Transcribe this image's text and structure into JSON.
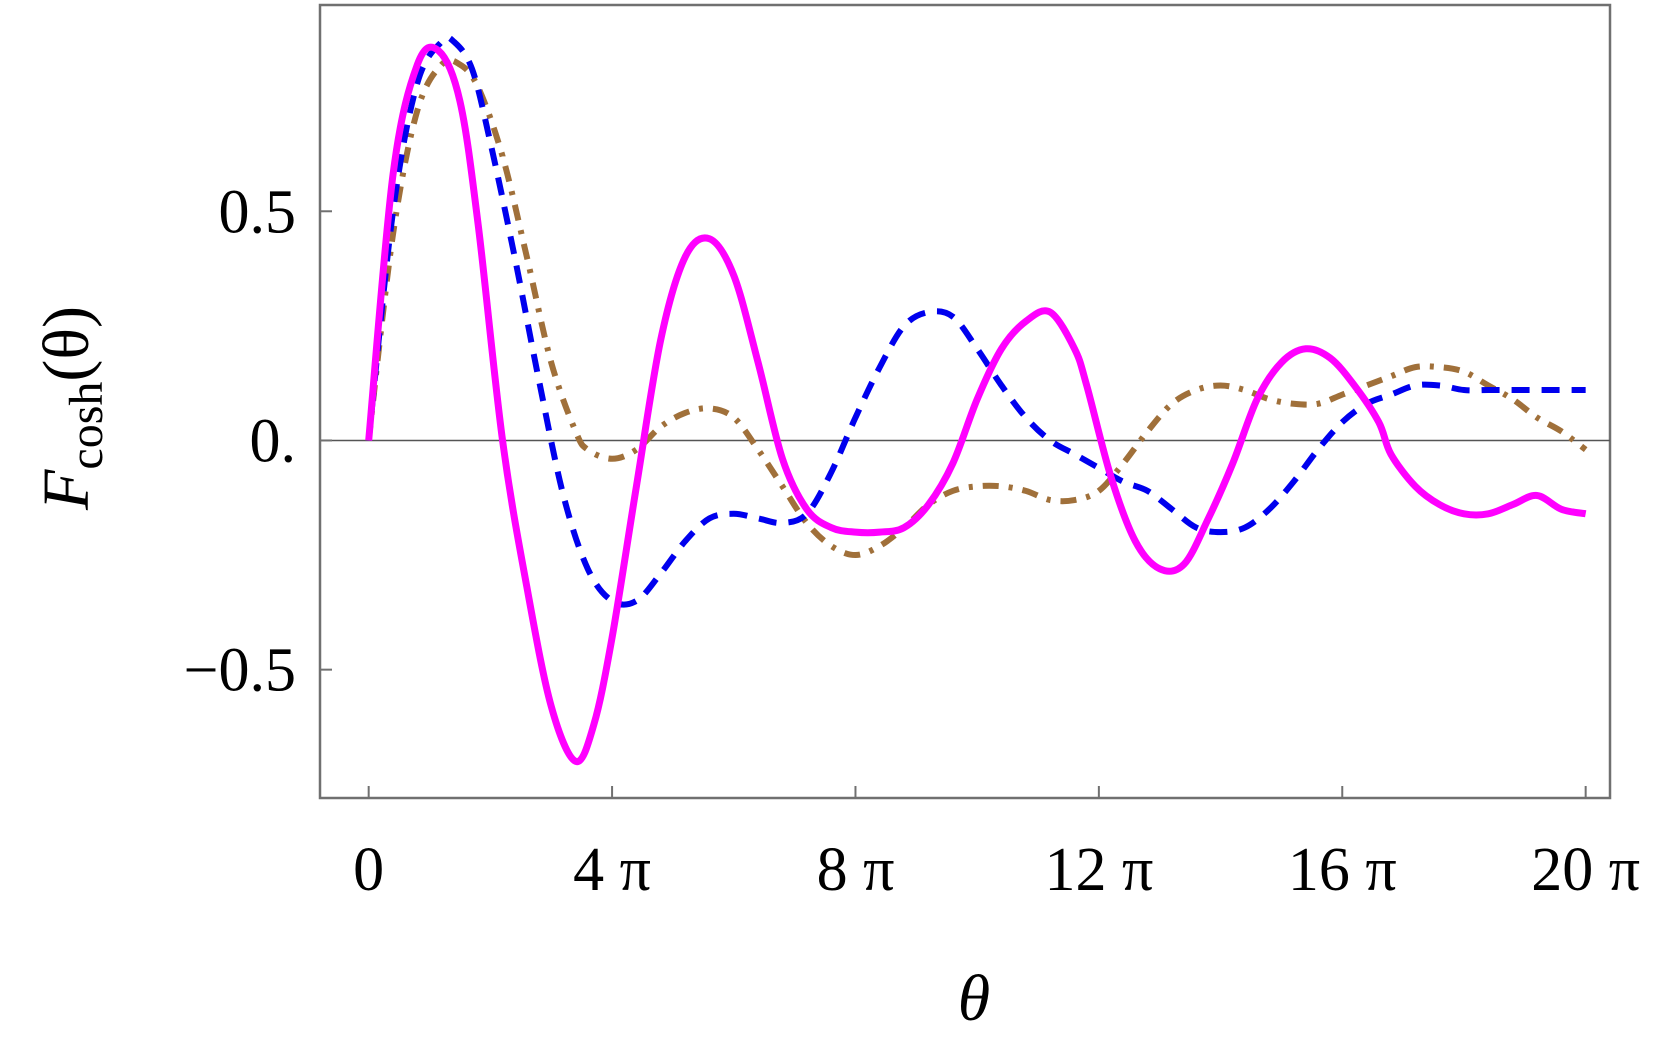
{
  "chart_data": {
    "type": "line",
    "xlabel": "θ",
    "ylabel": {
      "main": "F",
      "sub": "cosh",
      "arg": "(θ)"
    },
    "xlim": [
      -0.8,
      20.4
    ],
    "ylim": [
      -0.78,
      0.95
    ],
    "x_unit": "π",
    "x_ticks": [
      {
        "value": 0,
        "label": "0"
      },
      {
        "value": 4,
        "label": "4 π"
      },
      {
        "value": 8,
        "label": "8 π"
      },
      {
        "value": 12,
        "label": "12 π"
      },
      {
        "value": 16,
        "label": "16 π"
      },
      {
        "value": 20,
        "label": "20 π"
      }
    ],
    "y_ticks": [
      {
        "value": 0.5,
        "label": "0.5"
      },
      {
        "value": 0,
        "label": "0."
      },
      {
        "value": -0.5,
        "label": "−0.5"
      }
    ],
    "grid": false,
    "zero_line": true,
    "series": [
      {
        "color": "#ff00ff",
        "style": "solid",
        "x": [
          0,
          0.4,
          0.8,
          1.15,
          1.5,
          1.8,
          2.2,
          2.6,
          3.0,
          3.4,
          3.7,
          4.0,
          4.4,
          4.8,
          5.2,
          5.6,
          6.0,
          6.4,
          6.8,
          7.2,
          7.6,
          8.0,
          8.4,
          8.8,
          9.2,
          9.6,
          10.0,
          10.4,
          10.8,
          11.2,
          11.6,
          11.8,
          12.2,
          12.6,
          13.0,
          13.4,
          13.8,
          14.2,
          14.6,
          15.0,
          15.4,
          15.8,
          16.2,
          16.6,
          16.8,
          17.2,
          17.6,
          18.0,
          18.4,
          18.8,
          19.2,
          19.6,
          20.0
        ],
        "y": [
          0.0,
          0.58,
          0.82,
          0.85,
          0.74,
          0.47,
          0.0,
          -0.32,
          -0.58,
          -0.7,
          -0.62,
          -0.43,
          -0.1,
          0.22,
          0.4,
          0.44,
          0.36,
          0.17,
          -0.04,
          -0.15,
          -0.19,
          -0.2,
          -0.2,
          -0.19,
          -0.14,
          -0.05,
          0.09,
          0.2,
          0.26,
          0.28,
          0.2,
          0.12,
          -0.08,
          -0.22,
          -0.28,
          -0.27,
          -0.17,
          -0.05,
          0.09,
          0.17,
          0.2,
          0.18,
          0.12,
          0.04,
          -0.03,
          -0.1,
          -0.14,
          -0.16,
          -0.16,
          -0.14,
          -0.12,
          -0.15,
          -0.16
        ]
      },
      {
        "color": "#0000ee",
        "style": "dashed",
        "x": [
          0,
          0.4,
          0.8,
          1.2,
          1.4,
          1.7,
          2.0,
          2.4,
          2.8,
          3.2,
          3.6,
          4.0,
          4.4,
          4.8,
          5.2,
          5.6,
          6.0,
          6.4,
          6.8,
          7.2,
          7.6,
          8.0,
          8.4,
          8.8,
          9.2,
          9.6,
          10.0,
          10.4,
          10.8,
          11.2,
          11.6,
          12.0,
          12.4,
          12.8,
          13.2,
          13.6,
          14.0,
          14.4,
          14.8,
          15.2,
          15.6,
          16.0,
          16.4,
          16.8,
          17.2,
          17.6,
          18.0,
          18.4,
          18.8,
          19.2,
          19.6,
          20.0
        ],
        "y": [
          0.0,
          0.5,
          0.78,
          0.87,
          0.87,
          0.81,
          0.65,
          0.4,
          0.13,
          -0.12,
          -0.28,
          -0.35,
          -0.35,
          -0.29,
          -0.22,
          -0.17,
          -0.16,
          -0.17,
          -0.18,
          -0.16,
          -0.07,
          0.05,
          0.16,
          0.25,
          0.28,
          0.27,
          0.2,
          0.12,
          0.05,
          0.0,
          -0.03,
          -0.06,
          -0.09,
          -0.11,
          -0.15,
          -0.19,
          -0.2,
          -0.19,
          -0.15,
          -0.09,
          -0.02,
          0.04,
          0.08,
          0.1,
          0.12,
          0.12,
          0.11,
          0.11,
          0.11,
          0.11,
          0.11,
          0.11
        ]
      },
      {
        "color": "#a0703a",
        "style": "dashdot",
        "x": [
          0,
          0.4,
          0.8,
          1.2,
          1.5,
          1.8,
          2.2,
          2.6,
          3.0,
          3.4,
          3.6,
          4.0,
          4.4,
          4.8,
          5.2,
          5.6,
          6.0,
          6.4,
          6.8,
          7.2,
          7.6,
          8.0,
          8.4,
          8.8,
          9.2,
          9.6,
          10.0,
          10.4,
          10.8,
          11.2,
          11.6,
          12.0,
          12.4,
          12.8,
          13.2,
          13.6,
          14.0,
          14.4,
          14.8,
          15.2,
          15.6,
          16.0,
          16.4,
          16.8,
          17.2,
          17.6,
          18.0,
          18.4,
          18.8,
          19.2,
          19.6,
          20.0
        ],
        "y": [
          0.0,
          0.45,
          0.72,
          0.82,
          0.82,
          0.77,
          0.62,
          0.4,
          0.17,
          0.02,
          -0.02,
          -0.04,
          -0.02,
          0.03,
          0.06,
          0.07,
          0.05,
          -0.02,
          -0.1,
          -0.18,
          -0.23,
          -0.25,
          -0.23,
          -0.19,
          -0.14,
          -0.11,
          -0.1,
          -0.1,
          -0.11,
          -0.13,
          -0.13,
          -0.11,
          -0.05,
          0.02,
          0.08,
          0.11,
          0.12,
          0.11,
          0.09,
          0.08,
          0.08,
          0.1,
          0.12,
          0.14,
          0.16,
          0.16,
          0.15,
          0.12,
          0.09,
          0.05,
          0.02,
          -0.02
        ]
      }
    ]
  }
}
